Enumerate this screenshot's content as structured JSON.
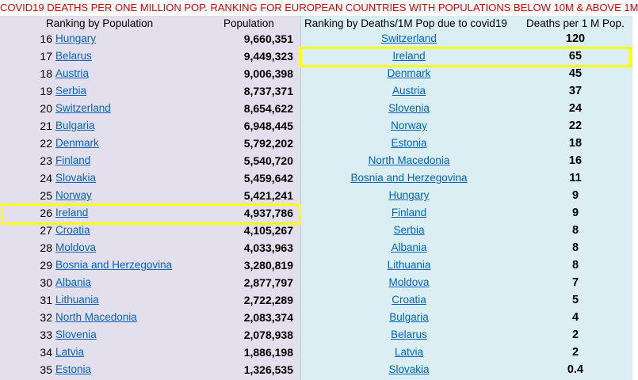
{
  "title": "COVID19 DEATHS PER ONE MILLION POP. RANKING FOR EUROPEAN COUNTRIES WITH POPULATIONS BELOW 10M & ABOVE 1M",
  "headers": {
    "ranking_population": "Ranking by Population",
    "population": "Population",
    "ranking_deaths": "Ranking by Deaths/1M Pop due to covid19",
    "deaths_per_million": "Deaths per 1 M Pop."
  },
  "rows": [
    {
      "rank": "16",
      "country": "Hungary",
      "population": "9,660,351",
      "death_country": "Switzerland",
      "deaths": "120"
    },
    {
      "rank": "17",
      "country": "Belarus",
      "population": "9,449,323",
      "death_country": "Ireland",
      "deaths": "65"
    },
    {
      "rank": "18",
      "country": "Austria",
      "population": "9,006,398",
      "death_country": "Denmark",
      "deaths": "45"
    },
    {
      "rank": "19",
      "country": "Serbia",
      "population": "8,737,371",
      "death_country": "Austria",
      "deaths": "37"
    },
    {
      "rank": "20",
      "country": "Switzerland",
      "population": "8,654,622",
      "death_country": "Slovenia",
      "deaths": "24"
    },
    {
      "rank": "21",
      "country": "Bulgaria",
      "population": "6,948,445",
      "death_country": "Norway",
      "deaths": "22"
    },
    {
      "rank": "22",
      "country": "Denmark",
      "population": "5,792,202",
      "death_country": "Estonia",
      "deaths": "18"
    },
    {
      "rank": "23",
      "country": "Finland",
      "population": "5,540,720",
      "death_country": "North Macedonia",
      "deaths": "16"
    },
    {
      "rank": "24",
      "country": "Slovakia",
      "population": "5,459,642",
      "death_country": "Bosnia and Herzegovina",
      "deaths": "11"
    },
    {
      "rank": "25",
      "country": "Norway",
      "population": "5,421,241",
      "death_country": "Hungary",
      "deaths": "9"
    },
    {
      "rank": "26",
      "country": "Ireland",
      "population": "4,937,786",
      "death_country": "Finland",
      "deaths": "9"
    },
    {
      "rank": "27",
      "country": "Croatia",
      "population": "4,105,267",
      "death_country": "Serbia",
      "deaths": "8"
    },
    {
      "rank": "28",
      "country": "Moldova",
      "population": "4,033,963",
      "death_country": "Albania",
      "deaths": "8"
    },
    {
      "rank": "29",
      "country": "Bosnia and Herzegovina",
      "population": "3,280,819",
      "death_country": "Lithuania",
      "deaths": "8"
    },
    {
      "rank": "30",
      "country": "Albania",
      "population": "2,877,797",
      "death_country": "Moldova",
      "deaths": "7"
    },
    {
      "rank": "31",
      "country": "Lithuania",
      "population": "2,722,289",
      "death_country": "Croatia",
      "deaths": "5"
    },
    {
      "rank": "32",
      "country": "North Macedonia",
      "population": "2,083,374",
      "death_country": "Bulgaria",
      "deaths": "4"
    },
    {
      "rank": "33",
      "country": "Slovenia",
      "population": "2,078,938",
      "death_country": "Belarus",
      "deaths": "2"
    },
    {
      "rank": "34",
      "country": "Latvia",
      "population": "1,886,198",
      "death_country": "Latvia",
      "deaths": "2"
    },
    {
      "rank": "35",
      "country": "Estonia",
      "population": "1,326,535",
      "death_country": "Slovakia",
      "deaths": "0.4"
    }
  ],
  "colors": {
    "title": "#e00000",
    "link": "#0563c1",
    "highlight": "#ffff00",
    "left_background": "#e4dfec",
    "right_background": "#daeef3"
  }
}
